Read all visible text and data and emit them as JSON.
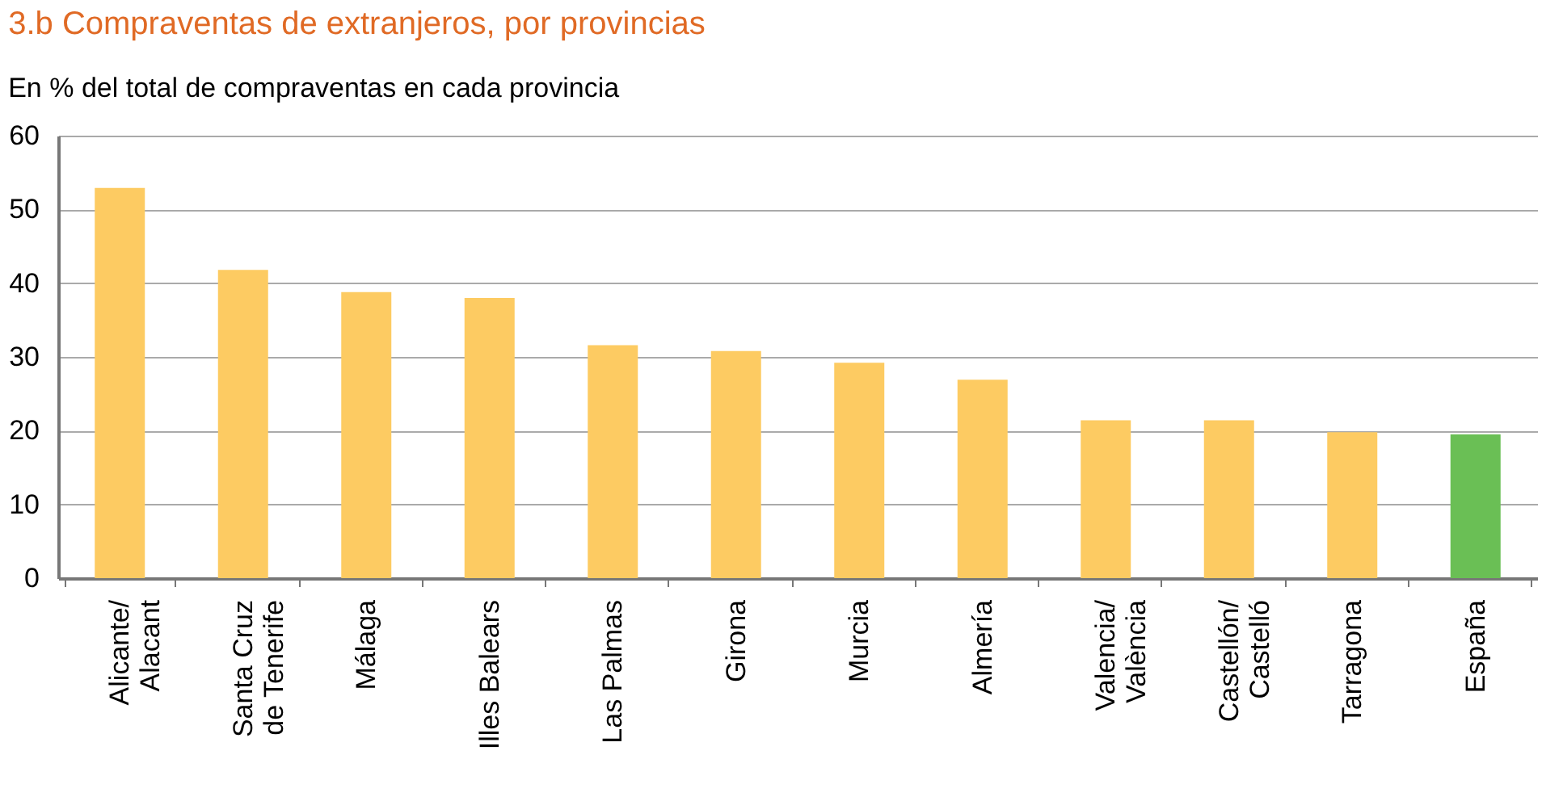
{
  "chart_data": {
    "type": "bar",
    "title": "3.b  Compraventas de extranjeros, por provincias",
    "subtitle": "En % del total de compraventas en cada provincia",
    "categories": [
      "Alicante/\nAlacant",
      "Santa Cruz\nde Tenerife",
      "Málaga",
      "Illes Balears",
      "Las Palmas",
      "Girona",
      "Murcia",
      "Almería",
      "Valencia/\nValència",
      "Castellón/\nCastelló",
      "Tarragona",
      "España"
    ],
    "values": [
      52.9,
      41.8,
      38.8,
      38.0,
      31.6,
      30.8,
      29.2,
      26.9,
      21.4,
      21.4,
      19.8,
      19.5
    ],
    "colors": [
      "#fdcb62",
      "#fdcb62",
      "#fdcb62",
      "#fdcb62",
      "#fdcb62",
      "#fdcb62",
      "#fdcb62",
      "#fdcb62",
      "#fdcb62",
      "#fdcb62",
      "#fdcb62",
      "#6abf55"
    ],
    "ylim": [
      0,
      60
    ],
    "yticks": [
      0,
      10,
      20,
      30,
      40,
      50,
      60
    ],
    "grid": "y"
  }
}
